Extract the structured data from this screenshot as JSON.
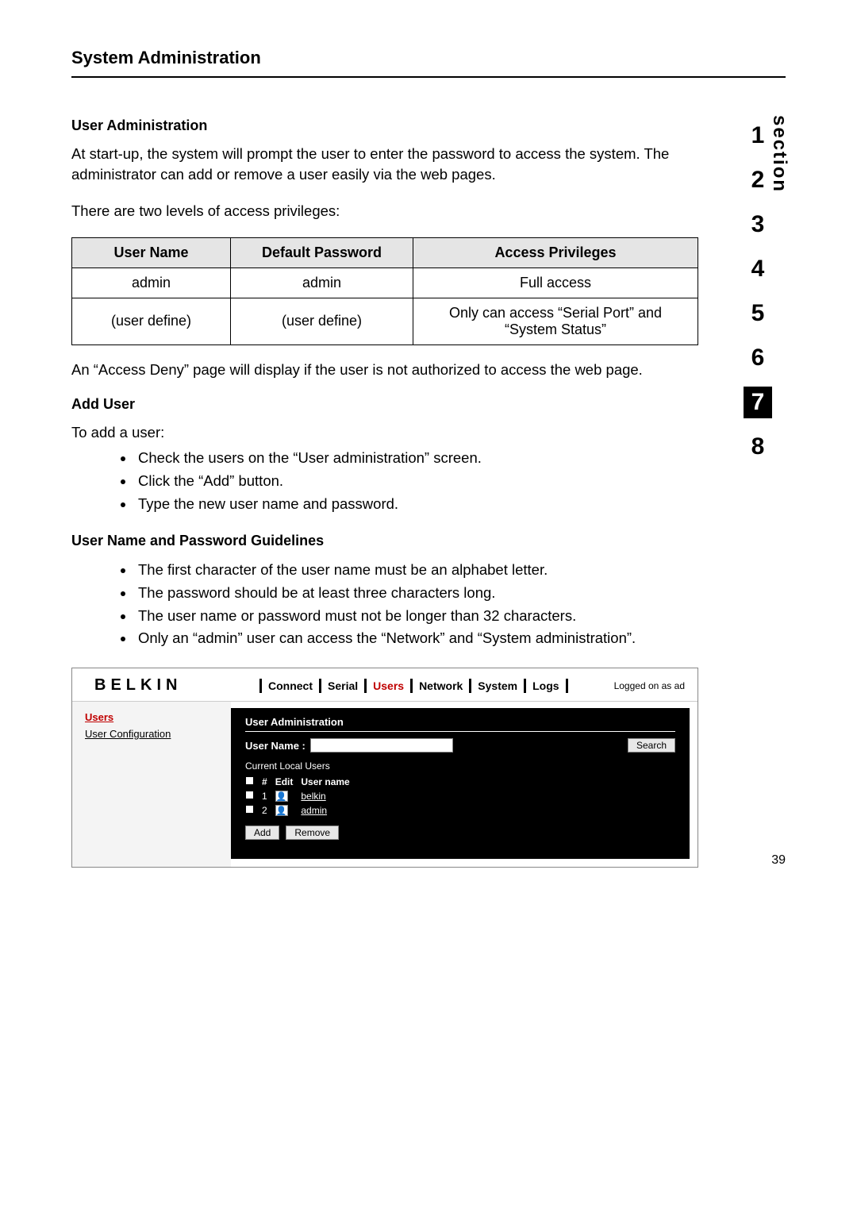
{
  "page": {
    "title": "System Administration",
    "number": "39"
  },
  "userAdmin": {
    "heading": "User Administration",
    "para1": "At start-up, the system will prompt the user to enter the password to access the system. The administrator can add or remove a user easily via the web pages.",
    "para2": "There are two levels of access privileges:",
    "accessDeny": "An “Access Deny” page will display if the user is not authorized to access the web page."
  },
  "privTable": {
    "headers": {
      "c1": "User Name",
      "c2": "Default Password",
      "c3": "Access Privileges"
    },
    "rows": [
      {
        "c1": "admin",
        "c2": "admin",
        "c3": "Full access"
      },
      {
        "c1": "(user define)",
        "c2": "(user define)",
        "c3": "Only can access “Serial Port” and “System Status”"
      }
    ]
  },
  "addUser": {
    "heading": "Add User",
    "intro": "To add a user:",
    "steps": [
      "Check the users on the “User administration” screen.",
      "Click the “Add” button.",
      "Type the new user name and password."
    ]
  },
  "guidelines": {
    "heading": "User Name and Password Guidelines",
    "items": [
      "The first character of the user name must be an alphabet letter.",
      "The password should be at least three characters long.",
      "The user name or password must not be longer than 32 characters.",
      "Only an “admin” user can access the “Network” and “System administration”."
    ]
  },
  "sectionNav": {
    "label": "section",
    "items": [
      "1",
      "2",
      "3",
      "4",
      "5",
      "6",
      "7",
      "8"
    ],
    "activeIndex": 6
  },
  "screenshot": {
    "logo": "BELKIN",
    "nav": [
      "Connect",
      "Serial",
      "Users",
      "Network",
      "System",
      "Logs"
    ],
    "navActive": "Users",
    "loggedOn": "Logged on as ad",
    "side": {
      "title": "Users",
      "link": "User Configuration"
    },
    "panel": {
      "title": "User Administration",
      "searchLabel": "User Name :",
      "searchBtn": "Search",
      "currentLabel": "Current Local Users",
      "cols": {
        "num": "#",
        "edit": "Edit",
        "name": "User name"
      },
      "rows": [
        {
          "num": "1",
          "name": "belkin"
        },
        {
          "num": "2",
          "name": "admin"
        }
      ],
      "addBtn": "Add",
      "removeBtn": "Remove"
    }
  }
}
